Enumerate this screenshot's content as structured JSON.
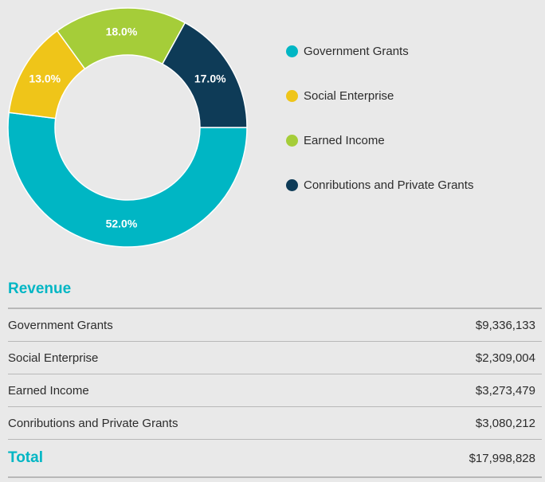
{
  "chart_data": {
    "type": "pie",
    "categories": [
      "Government Grants",
      "Social Enterprise",
      "Earned Income",
      "Conributions and Private Grants"
    ],
    "values": [
      52.0,
      13.0,
      18.0,
      17.0
    ],
    "value_labels": [
      "52.0%",
      "13.0%",
      "18.0%",
      "17.0%"
    ],
    "colors": [
      "#00b6c4",
      "#efc519",
      "#a5cd39",
      "#0e3b57"
    ],
    "legend_position": "right",
    "donut": true
  },
  "legend": {
    "items": [
      {
        "label": "Government Grants",
        "color": "#00b6c4"
      },
      {
        "label": "Social Enterprise",
        "color": "#efc519"
      },
      {
        "label": "Earned Income",
        "color": "#a5cd39"
      },
      {
        "label": "Conributions and Private Grants",
        "color": "#0e3b57"
      }
    ]
  },
  "revenue": {
    "title": "Revenue",
    "accent_color": "#00b6c4",
    "rows": [
      {
        "label": "Government Grants",
        "amount": "$9,336,133"
      },
      {
        "label": "Social Enterprise",
        "amount": "$2,309,004"
      },
      {
        "label": "Earned Income",
        "amount": "$3,273,479"
      },
      {
        "label": "Conributions and Private Grants",
        "amount": "$3,080,212"
      }
    ],
    "total_label": "Total",
    "total_amount": "$17,998,828"
  }
}
